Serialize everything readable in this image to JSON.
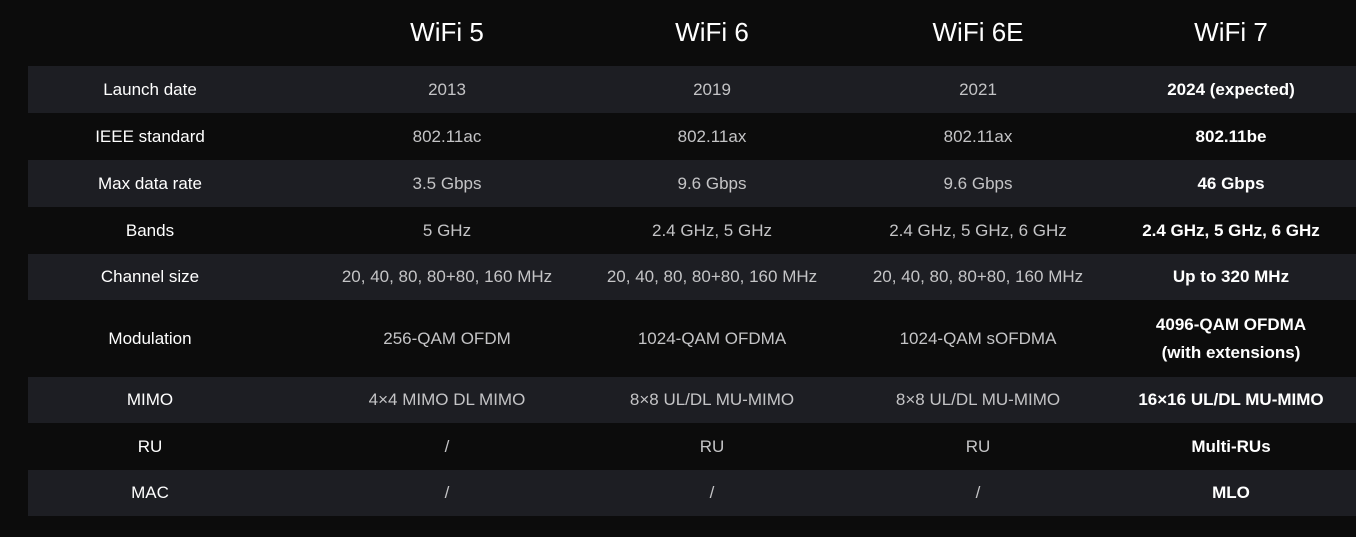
{
  "table": {
    "columns": [
      "WiFi 5",
      "WiFi 6",
      "WiFi 6E",
      "WiFi 7"
    ],
    "rows": [
      {
        "label": "Launch date",
        "values": [
          "2013",
          "2019",
          "2021",
          "2024 (expected)"
        ]
      },
      {
        "label": "IEEE standard",
        "values": [
          "802.11ac",
          "802.11ax",
          "802.11ax",
          "802.11be"
        ]
      },
      {
        "label": "Max data rate",
        "values": [
          "3.5 Gbps",
          "9.6 Gbps",
          "9.6 Gbps",
          "46 Gbps"
        ]
      },
      {
        "label": "Bands",
        "values": [
          "5 GHz",
          "2.4 GHz, 5 GHz",
          "2.4 GHz, 5 GHz, 6 GHz",
          "2.4 GHz, 5 GHz, 6 GHz"
        ]
      },
      {
        "label": "Channel size",
        "values": [
          "20, 40, 80, 80+80, 160 MHz",
          "20, 40, 80, 80+80, 160 MHz",
          "20, 40, 80, 80+80, 160 MHz",
          "Up to 320 MHz"
        ]
      },
      {
        "label": "Modulation",
        "values": [
          "256-QAM OFDM",
          "1024-QAM OFDMA",
          "1024-QAM sOFDMA",
          [
            "4096-QAM OFDMA",
            "(with extensions)"
          ]
        ]
      },
      {
        "label": "MIMO",
        "values": [
          "4×4 MIMO DL MIMO",
          "8×8 UL/DL MU-MIMO",
          "8×8 UL/DL MU-MIMO",
          "16×16 UL/DL MU-MIMO"
        ]
      },
      {
        "label": "RU",
        "values": [
          "/",
          "RU",
          "RU",
          "Multi-RUs"
        ]
      },
      {
        "label": "MAC",
        "values": [
          "/",
          "/",
          "/",
          "MLO"
        ]
      }
    ]
  }
}
